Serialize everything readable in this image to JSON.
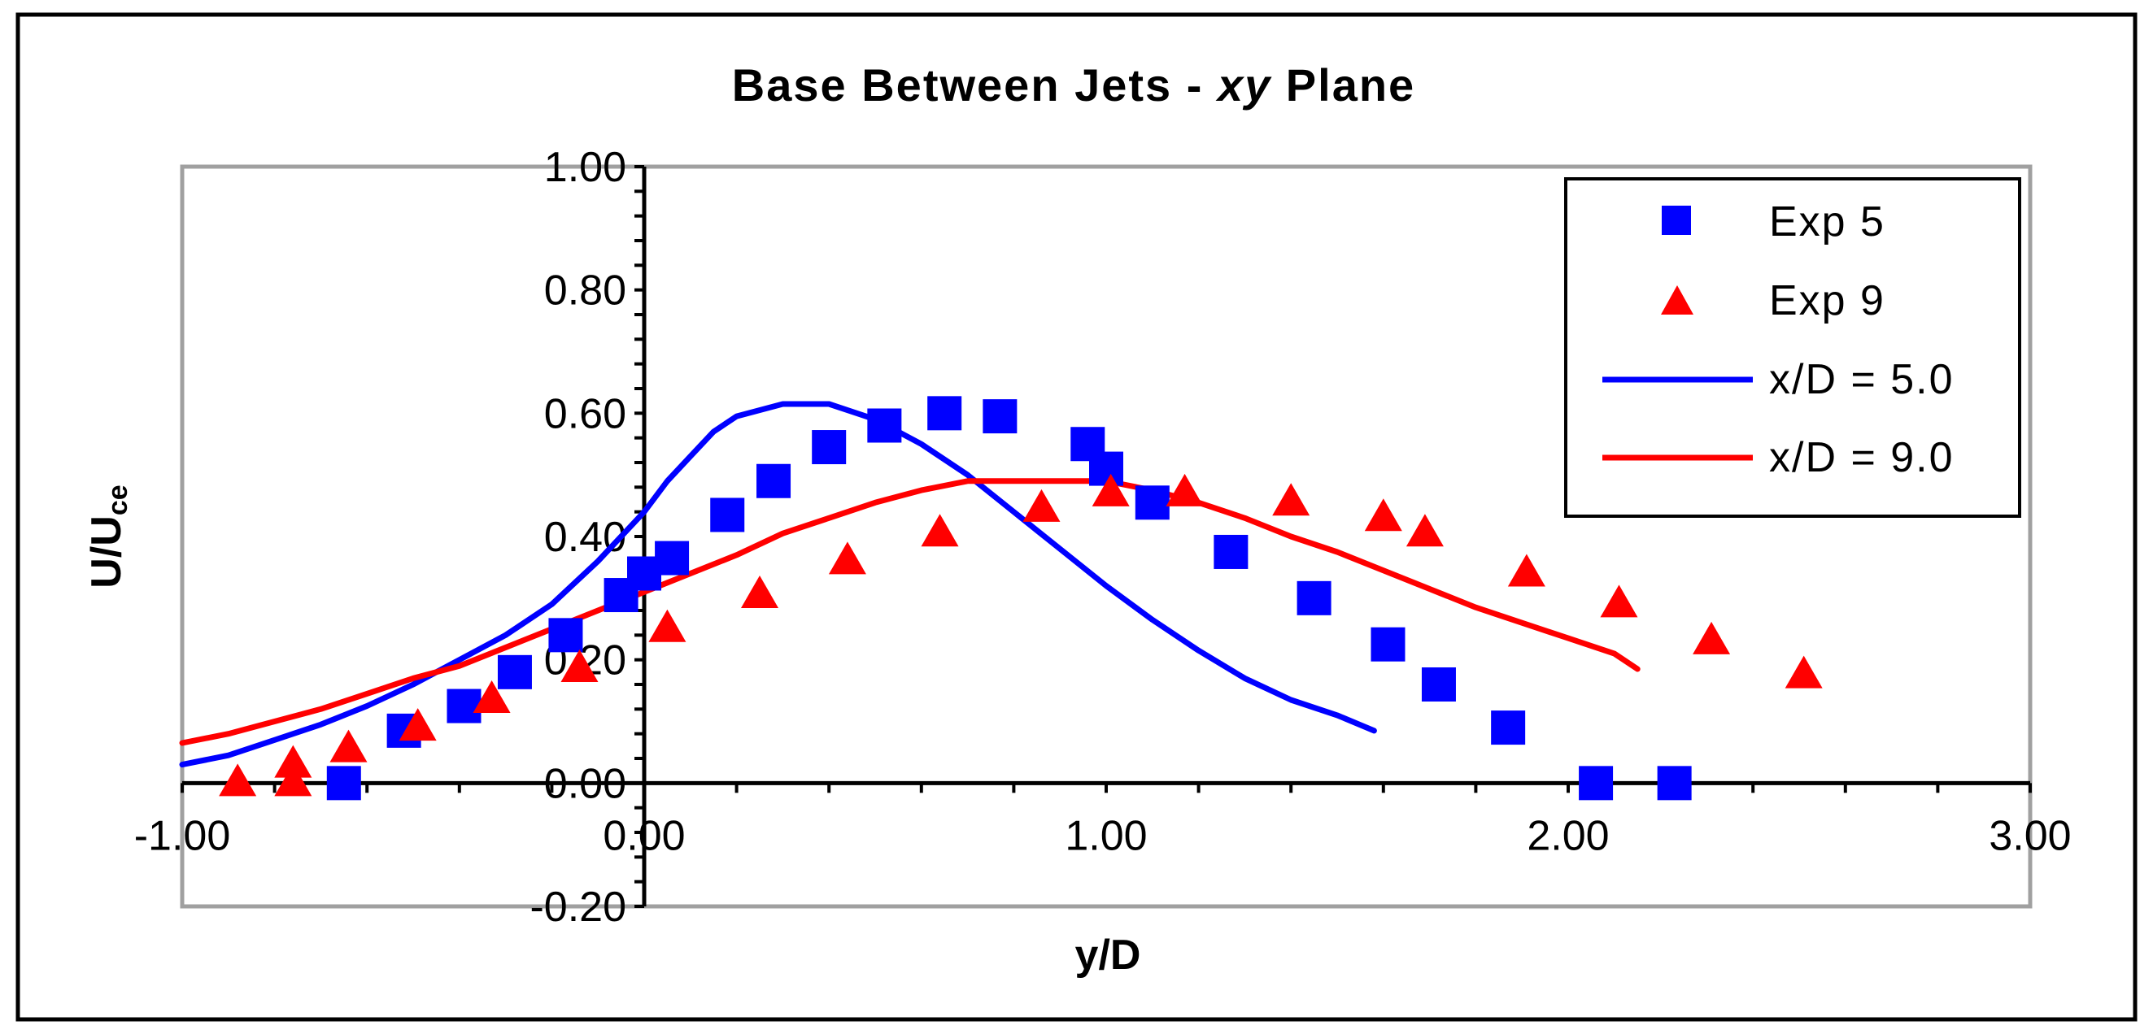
{
  "chart_data": {
    "type": "scatter",
    "title_parts": [
      "Base Between Jets - ",
      "xy",
      " Plane"
    ],
    "xlabel": "y/D",
    "ylabel_main": "U/U",
    "ylabel_sub": "ce",
    "xlim": [
      -1.0,
      3.0
    ],
    "ylim": [
      -0.2,
      1.0
    ],
    "x_ticks": [
      "-1.00",
      "0.00",
      "1.00",
      "2.00",
      "3.00"
    ],
    "x_tick_values": [
      -1.0,
      0.0,
      1.0,
      2.0,
      3.0
    ],
    "y_ticks": [
      "1.00",
      "0.80",
      "0.60",
      "0.40",
      "0.20",
      "0.00",
      "-0.20"
    ],
    "y_tick_values": [
      1.0,
      0.8,
      0.6,
      0.4,
      0.2,
      0.0,
      -0.2
    ],
    "legend_position": "top-right",
    "series": [
      {
        "name": "Exp 5",
        "kind": "scatter",
        "marker": "square",
        "color": "#0000ff",
        "points": [
          [
            -0.65,
            0.0
          ],
          [
            -0.52,
            0.085
          ],
          [
            -0.39,
            0.125
          ],
          [
            -0.28,
            0.18
          ],
          [
            -0.17,
            0.24
          ],
          [
            -0.05,
            0.305
          ],
          [
            0.0,
            0.34
          ],
          [
            0.06,
            0.365
          ],
          [
            0.18,
            0.435
          ],
          [
            0.28,
            0.49
          ],
          [
            0.4,
            0.545
          ],
          [
            0.52,
            0.58
          ],
          [
            0.65,
            0.6
          ],
          [
            0.77,
            0.595
          ],
          [
            0.96,
            0.55
          ],
          [
            1.0,
            0.51
          ],
          [
            1.1,
            0.455
          ],
          [
            1.27,
            0.375
          ],
          [
            1.45,
            0.3
          ],
          [
            1.61,
            0.225
          ],
          [
            1.72,
            0.16
          ],
          [
            1.87,
            0.09
          ],
          [
            2.06,
            0.0
          ],
          [
            2.23,
            0.0
          ]
        ]
      },
      {
        "name": "Exp 9",
        "kind": "scatter",
        "marker": "triangle",
        "color": "#ff0000",
        "points": [
          [
            -0.88,
            0.0
          ],
          [
            -0.76,
            0.03
          ],
          [
            -0.76,
            0.0
          ],
          [
            -0.64,
            0.055
          ],
          [
            -0.49,
            0.09
          ],
          [
            -0.33,
            0.135
          ],
          [
            -0.14,
            0.185
          ],
          [
            0.05,
            0.25
          ],
          [
            0.25,
            0.305
          ],
          [
            0.44,
            0.36
          ],
          [
            0.64,
            0.405
          ],
          [
            0.86,
            0.445
          ],
          [
            1.01,
            0.47
          ],
          [
            1.17,
            0.47
          ],
          [
            1.4,
            0.455
          ],
          [
            1.6,
            0.43
          ],
          [
            1.69,
            0.405
          ],
          [
            1.91,
            0.34
          ],
          [
            2.11,
            0.29
          ],
          [
            2.31,
            0.23
          ],
          [
            2.51,
            0.175
          ]
        ]
      },
      {
        "name": "x/D = 5.0",
        "kind": "line",
        "color": "#0000ff",
        "points": [
          [
            -1.0,
            0.03
          ],
          [
            -0.9,
            0.045
          ],
          [
            -0.8,
            0.07
          ],
          [
            -0.7,
            0.095
          ],
          [
            -0.6,
            0.125
          ],
          [
            -0.5,
            0.16
          ],
          [
            -0.4,
            0.2
          ],
          [
            -0.3,
            0.24
          ],
          [
            -0.2,
            0.29
          ],
          [
            -0.1,
            0.36
          ],
          [
            0.0,
            0.44
          ],
          [
            0.05,
            0.49
          ],
          [
            0.1,
            0.53
          ],
          [
            0.15,
            0.57
          ],
          [
            0.2,
            0.595
          ],
          [
            0.3,
            0.615
          ],
          [
            0.4,
            0.615
          ],
          [
            0.5,
            0.59
          ],
          [
            0.6,
            0.55
          ],
          [
            0.7,
            0.5
          ],
          [
            0.8,
            0.44
          ],
          [
            0.9,
            0.38
          ],
          [
            1.0,
            0.32
          ],
          [
            1.1,
            0.265
          ],
          [
            1.2,
            0.215
          ],
          [
            1.3,
            0.17
          ],
          [
            1.4,
            0.135
          ],
          [
            1.5,
            0.11
          ],
          [
            1.58,
            0.085
          ]
        ]
      },
      {
        "name": "x/D = 9.0",
        "kind": "line",
        "color": "#ff0000",
        "points": [
          [
            -1.0,
            0.065
          ],
          [
            -0.9,
            0.08
          ],
          [
            -0.8,
            0.1
          ],
          [
            -0.7,
            0.12
          ],
          [
            -0.6,
            0.145
          ],
          [
            -0.5,
            0.17
          ],
          [
            -0.4,
            0.19
          ],
          [
            -0.3,
            0.22
          ],
          [
            -0.2,
            0.25
          ],
          [
            -0.1,
            0.28
          ],
          [
            0.0,
            0.31
          ],
          [
            0.1,
            0.34
          ],
          [
            0.2,
            0.37
          ],
          [
            0.3,
            0.405
          ],
          [
            0.4,
            0.43
          ],
          [
            0.5,
            0.455
          ],
          [
            0.6,
            0.475
          ],
          [
            0.7,
            0.49
          ],
          [
            0.8,
            0.49
          ],
          [
            0.9,
            0.49
          ],
          [
            1.0,
            0.49
          ],
          [
            1.1,
            0.475
          ],
          [
            1.2,
            0.455
          ],
          [
            1.3,
            0.43
          ],
          [
            1.4,
            0.4
          ],
          [
            1.5,
            0.375
          ],
          [
            1.6,
            0.345
          ],
          [
            1.7,
            0.315
          ],
          [
            1.8,
            0.285
          ],
          [
            1.9,
            0.26
          ],
          [
            2.0,
            0.235
          ],
          [
            2.1,
            0.21
          ],
          [
            2.15,
            0.185
          ]
        ]
      }
    ]
  }
}
